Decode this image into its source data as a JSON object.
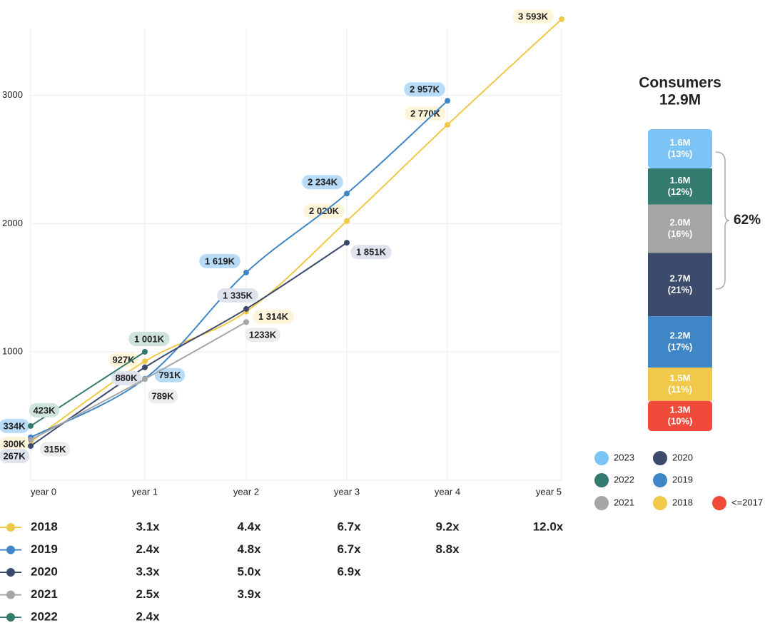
{
  "chart_data": [
    {
      "type": "line",
      "categories": [
        "year 0",
        "year 1",
        "year 2",
        "year 3",
        "year 4",
        "year 5"
      ],
      "ylim": [
        0,
        3520
      ],
      "yticks": [
        1000,
        2000,
        3000
      ],
      "grid": true,
      "series": [
        {
          "name": "2018",
          "color": "#f0c94a",
          "label_bg": "#fdf5d9",
          "values": [
            300,
            927,
            1314,
            2020,
            2770,
            3593
          ],
          "value_labels": [
            "300K",
            "927K",
            "1 314K",
            "2 020K",
            "2 770K",
            "3 593K"
          ],
          "growth": [
            "3.1x",
            "4.4x",
            "6.7x",
            "9.2x",
            "12.0x"
          ]
        },
        {
          "name": "2019",
          "color": "#3f86c6",
          "label_bg": "#b8dbf7",
          "values": [
            334,
            791,
            1619,
            2234,
            2957,
            null
          ],
          "value_labels": [
            "334K",
            "791K",
            "1 619K",
            "2 234K",
            "2 957K",
            null
          ],
          "growth": [
            "2.4x",
            "4.8x",
            "6.7x",
            "8.8x"
          ]
        },
        {
          "name": "2020",
          "color": "#3c4a6b",
          "label_bg": "#dfe3ee",
          "values": [
            267,
            880,
            1335,
            1851,
            null,
            null
          ],
          "value_labels": [
            "267K",
            "880K",
            "1 335K",
            "1 851K",
            null,
            null
          ],
          "growth": [
            "3.3x",
            "5.0x",
            "6.9x"
          ]
        },
        {
          "name": "2021",
          "color": "#a6a6a6",
          "label_bg": "#ececec",
          "values": [
            315,
            789,
            1233,
            null,
            null,
            null
          ],
          "value_labels": [
            "315K",
            "789K",
            "1233K",
            null,
            null,
            null
          ],
          "growth": [
            "2.5x",
            "3.9x"
          ]
        },
        {
          "name": "2022",
          "color": "#357a6e",
          "label_bg": "#cfe3dd",
          "values": [
            423,
            1001,
            null,
            null,
            null,
            null
          ],
          "value_labels": [
            "423K",
            "1 001K",
            null,
            null,
            null,
            null
          ],
          "growth": [
            "2.4x"
          ]
        }
      ]
    },
    {
      "type": "stacked-bar",
      "title": "Consumers",
      "subtitle": "12.9M",
      "categories": [
        "2023",
        "2022",
        "2021",
        "2020",
        "2019",
        "2018",
        "<=2017"
      ],
      "colors": [
        "#7cc4f5",
        "#357a6e",
        "#a6a6a6",
        "#3c4a6b",
        "#3f86c6",
        "#f0c94a",
        "#ef4a3a"
      ],
      "values": [
        1.6,
        1.6,
        2.0,
        2.7,
        2.2,
        1.5,
        1.3
      ],
      "value_labels": [
        "1.6M",
        "1.6M",
        "2.0M",
        "2.7M",
        "2.2M",
        "1.5M",
        "1.3M"
      ],
      "shares": [
        13,
        12,
        16,
        21,
        17,
        11,
        10
      ],
      "share_labels": [
        "(13%)",
        "(12%)",
        "(16%)",
        "(21%)",
        "(17%)",
        "(11%)",
        "(10%)"
      ],
      "bracket_label": "62%"
    }
  ]
}
